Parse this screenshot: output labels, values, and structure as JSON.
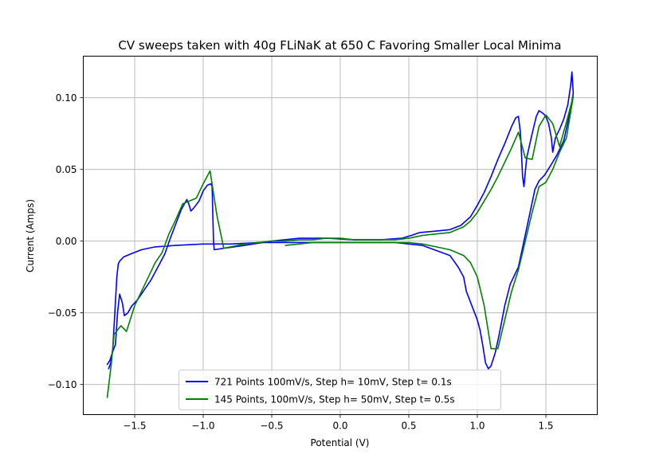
{
  "chart_data": {
    "type": "line",
    "title": "CV sweeps taken with 40g FLiNaK at 650 C Favoring Smaller Local Minima",
    "xlabel": "Potential (V)",
    "ylabel": "Current (Amps)",
    "xlim": [
      -1.875,
      1.875
    ],
    "ylim": [
      -0.121,
      0.129
    ],
    "xticks": [
      -1.5,
      -1.0,
      -0.5,
      0.0,
      0.5,
      1.0,
      1.5
    ],
    "xtick_labels": [
      "−1.5",
      "−1.0",
      "−0.5",
      "0.0",
      "0.5",
      "1.0",
      "1.5"
    ],
    "yticks": [
      -0.1,
      -0.05,
      0.0,
      0.05,
      0.1
    ],
    "ytick_labels": [
      "−0.10",
      "−0.05",
      "0.00",
      "0.05",
      "0.10"
    ],
    "grid": true,
    "legend_position": "bottom-center",
    "series": [
      {
        "name": "721 Points 100mV/s, Step h= 10mV, Step t= 0.1s",
        "color": "#0000ff",
        "points": [
          [
            -1.7,
            -0.086
          ],
          [
            -1.68,
            -0.083
          ],
          [
            -1.66,
            -0.077
          ],
          [
            -1.64,
            -0.072
          ],
          [
            -1.625,
            -0.05
          ],
          [
            -1.61,
            -0.037
          ],
          [
            -1.59,
            -0.043
          ],
          [
            -1.575,
            -0.052
          ],
          [
            -1.55,
            -0.05
          ],
          [
            -1.52,
            -0.045
          ],
          [
            -1.48,
            -0.041
          ],
          [
            -1.43,
            -0.034
          ],
          [
            -1.38,
            -0.027
          ],
          [
            -1.33,
            -0.018
          ],
          [
            -1.28,
            -0.009
          ],
          [
            -1.24,
            0.002
          ],
          [
            -1.2,
            0.012
          ],
          [
            -1.16,
            0.022
          ],
          [
            -1.12,
            0.029
          ],
          [
            -1.105,
            0.026
          ],
          [
            -1.09,
            0.021
          ],
          [
            -1.07,
            0.023
          ],
          [
            -1.03,
            0.028
          ],
          [
            -1.0,
            0.035
          ],
          [
            -0.97,
            0.039
          ],
          [
            -0.945,
            0.04
          ],
          [
            -0.935,
            0.038
          ],
          [
            -0.925,
            0.0
          ],
          [
            -0.92,
            -0.006
          ],
          [
            -0.85,
            -0.005
          ],
          [
            -0.7,
            -0.003
          ],
          [
            -0.5,
            0.0
          ],
          [
            -0.3,
            0.002
          ],
          [
            -0.1,
            0.002
          ],
          [
            0.1,
            0.001
          ],
          [
            0.3,
            0.001
          ],
          [
            0.45,
            0.002
          ],
          [
            0.52,
            0.004
          ],
          [
            0.58,
            0.006
          ],
          [
            0.7,
            0.007
          ],
          [
            0.8,
            0.008
          ],
          [
            0.88,
            0.011
          ],
          [
            0.95,
            0.017
          ],
          [
            1.0,
            0.025
          ],
          [
            1.05,
            0.034
          ],
          [
            1.1,
            0.045
          ],
          [
            1.15,
            0.057
          ],
          [
            1.2,
            0.068
          ],
          [
            1.25,
            0.08
          ],
          [
            1.28,
            0.086
          ],
          [
            1.3,
            0.087
          ],
          [
            1.315,
            0.075
          ],
          [
            1.33,
            0.045
          ],
          [
            1.34,
            0.038
          ],
          [
            1.36,
            0.058
          ],
          [
            1.4,
            0.075
          ],
          [
            1.43,
            0.087
          ],
          [
            1.45,
            0.091
          ],
          [
            1.48,
            0.089
          ],
          [
            1.5,
            0.087
          ],
          [
            1.52,
            0.082
          ],
          [
            1.54,
            0.072
          ],
          [
            1.55,
            0.062
          ],
          [
            1.57,
            0.072
          ],
          [
            1.6,
            0.078
          ],
          [
            1.63,
            0.085
          ],
          [
            1.66,
            0.095
          ],
          [
            1.68,
            0.108
          ],
          [
            1.69,
            0.118
          ],
          [
            1.7,
            0.103
          ],
          [
            1.67,
            0.087
          ],
          [
            1.63,
            0.07
          ],
          [
            1.58,
            0.06
          ],
          [
            1.53,
            0.052
          ],
          [
            1.49,
            0.046
          ],
          [
            1.45,
            0.042
          ],
          [
            1.42,
            0.036
          ],
          [
            1.38,
            0.018
          ],
          [
            1.34,
            0.0
          ],
          [
            1.3,
            -0.018
          ],
          [
            1.26,
            -0.026
          ],
          [
            1.24,
            -0.03
          ],
          [
            1.2,
            -0.045
          ],
          [
            1.16,
            -0.065
          ],
          [
            1.13,
            -0.078
          ],
          [
            1.1,
            -0.087
          ],
          [
            1.08,
            -0.089
          ],
          [
            1.06,
            -0.085
          ],
          [
            1.04,
            -0.073
          ],
          [
            1.02,
            -0.062
          ],
          [
            1.0,
            -0.055
          ],
          [
            0.96,
            -0.045
          ],
          [
            0.92,
            -0.035
          ],
          [
            0.9,
            -0.025
          ],
          [
            0.86,
            -0.018
          ],
          [
            0.8,
            -0.01
          ],
          [
            0.6,
            -0.003
          ],
          [
            0.4,
            -0.001
          ],
          [
            0.2,
            -0.001
          ],
          [
            0.0,
            -0.001
          ],
          [
            -0.2,
            -0.001
          ],
          [
            -0.4,
            -0.001
          ],
          [
            -0.6,
            -0.001
          ],
          [
            -0.8,
            -0.002
          ],
          [
            -1.0,
            -0.002
          ],
          [
            -1.2,
            -0.003
          ],
          [
            -1.35,
            -0.004
          ],
          [
            -1.45,
            -0.006
          ],
          [
            -1.53,
            -0.009
          ],
          [
            -1.58,
            -0.011
          ],
          [
            -1.61,
            -0.014
          ],
          [
            -1.62,
            -0.016
          ],
          [
            -1.63,
            -0.025
          ],
          [
            -1.645,
            -0.05
          ],
          [
            -1.66,
            -0.075
          ],
          [
            -1.675,
            -0.085
          ],
          [
            -1.69,
            -0.089
          ]
        ]
      },
      {
        "name": "145 Points, 100mV/s, Step h= 50mV, Step t= 0.5s",
        "color": "#008000",
        "points": [
          [
            -1.7,
            -0.109
          ],
          [
            -1.67,
            -0.085
          ],
          [
            -1.65,
            -0.065
          ],
          [
            -1.6,
            -0.059
          ],
          [
            -1.56,
            -0.063
          ],
          [
            -1.5,
            -0.045
          ],
          [
            -1.45,
            -0.035
          ],
          [
            -1.4,
            -0.025
          ],
          [
            -1.35,
            -0.015
          ],
          [
            -1.3,
            -0.008
          ],
          [
            -1.25,
            0.005
          ],
          [
            -1.2,
            0.015
          ],
          [
            -1.15,
            0.026
          ],
          [
            -1.1,
            0.028
          ],
          [
            -1.05,
            0.03
          ],
          [
            -1.0,
            0.04
          ],
          [
            -0.95,
            0.049
          ],
          [
            -0.9,
            0.018
          ],
          [
            -0.85,
            -0.005
          ],
          [
            -0.8,
            -0.004
          ],
          [
            -0.75,
            -0.003
          ],
          [
            -0.7,
            -0.002
          ],
          [
            -0.6,
            -0.001
          ],
          [
            -0.5,
            0.0
          ],
          [
            -0.4,
            0.0
          ],
          [
            -0.3,
            0.001
          ],
          [
            -0.2,
            0.001
          ],
          [
            -0.1,
            0.002
          ],
          [
            0.0,
            0.002
          ],
          [
            0.1,
            0.001
          ],
          [
            0.2,
            0.001
          ],
          [
            0.3,
            0.001
          ],
          [
            0.4,
            0.001
          ],
          [
            0.5,
            0.002
          ],
          [
            0.55,
            0.003
          ],
          [
            0.6,
            0.004
          ],
          [
            0.7,
            0.005
          ],
          [
            0.8,
            0.006
          ],
          [
            0.9,
            0.01
          ],
          [
            0.95,
            0.014
          ],
          [
            1.0,
            0.02
          ],
          [
            1.05,
            0.028
          ],
          [
            1.1,
            0.036
          ],
          [
            1.15,
            0.045
          ],
          [
            1.2,
            0.055
          ],
          [
            1.25,
            0.065
          ],
          [
            1.3,
            0.076
          ],
          [
            1.35,
            0.058
          ],
          [
            1.4,
            0.057
          ],
          [
            1.45,
            0.08
          ],
          [
            1.5,
            0.088
          ],
          [
            1.55,
            0.082
          ],
          [
            1.6,
            0.066
          ],
          [
            1.65,
            0.083
          ],
          [
            1.7,
            0.101
          ],
          [
            1.65,
            0.072
          ],
          [
            1.6,
            0.062
          ],
          [
            1.55,
            0.05
          ],
          [
            1.5,
            0.041
          ],
          [
            1.45,
            0.038
          ],
          [
            1.4,
            0.02
          ],
          [
            1.35,
            0.0
          ],
          [
            1.3,
            -0.02
          ],
          [
            1.25,
            -0.035
          ],
          [
            1.2,
            -0.055
          ],
          [
            1.15,
            -0.075
          ],
          [
            1.1,
            -0.075
          ],
          [
            1.05,
            -0.045
          ],
          [
            1.0,
            -0.025
          ],
          [
            0.95,
            -0.015
          ],
          [
            0.9,
            -0.01
          ],
          [
            0.8,
            -0.006
          ],
          [
            0.7,
            -0.004
          ],
          [
            0.6,
            -0.002
          ],
          [
            0.5,
            -0.001
          ],
          [
            0.4,
            -0.001
          ],
          [
            0.3,
            -0.001
          ],
          [
            0.2,
            -0.001
          ],
          [
            0.1,
            -0.001
          ],
          [
            0.0,
            -0.001
          ],
          [
            -0.1,
            -0.001
          ],
          [
            -0.2,
            -0.001
          ],
          [
            -0.3,
            -0.002
          ],
          [
            -0.4,
            -0.003
          ]
        ]
      }
    ]
  }
}
